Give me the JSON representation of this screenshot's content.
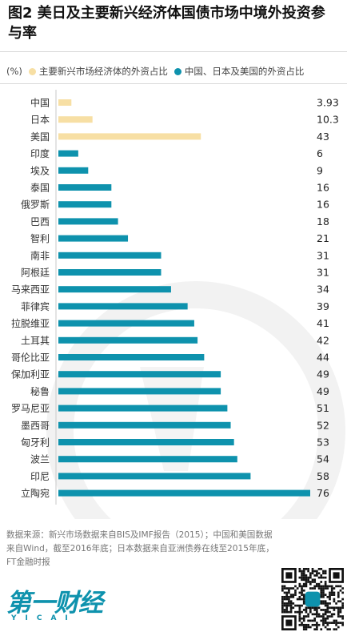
{
  "title": "图2 美日及主要新兴经济体国债市场中境外投资参与率",
  "chart_data": {
    "type": "bar",
    "orientation": "horizontal",
    "unit": "(%)",
    "categories": [
      "中国",
      "日本",
      "美国",
      "印度",
      "埃及",
      "泰国",
      "俄罗斯",
      "巴西",
      "智利",
      "南非",
      "阿根廷",
      "马来西亚",
      "菲律宾",
      "拉脱维亚",
      "土耳其",
      "哥伦比亚",
      "保加利亚",
      "秘鲁",
      "罗马尼亚",
      "墨西哥",
      "匈牙利",
      "波兰",
      "印尼",
      "立陶宛"
    ],
    "values": [
      3.93,
      10.3,
      43,
      6,
      9,
      16,
      16,
      18,
      21,
      31,
      31,
      34,
      39,
      41,
      42,
      44,
      49,
      49,
      51,
      52,
      53,
      54,
      58,
      76
    ],
    "value_labels": [
      "3.93",
      "10.3",
      "43",
      "6",
      "9",
      "16",
      "16",
      "18",
      "21",
      "31",
      "31",
      "34",
      "39",
      "41",
      "42",
      "44",
      "49",
      "49",
      "51",
      "52",
      "53",
      "54",
      "58",
      "76"
    ],
    "groups": [
      0,
      0,
      0,
      1,
      1,
      1,
      1,
      1,
      1,
      1,
      1,
      1,
      1,
      1,
      1,
      1,
      1,
      1,
      1,
      1,
      1,
      1,
      1,
      1
    ],
    "series": [
      {
        "name": "主要新兴市场经济体的外资占比",
        "color": "#f7dfa4"
      },
      {
        "name": "中国、日本及美国的外资占比",
        "color": "#0e92ad"
      }
    ],
    "xlim": [
      0,
      76
    ],
    "grid": false,
    "legend_position": "top"
  },
  "source": "数据来源：新兴市场数据来自BIS及IMF报告（2015）；中国和美国数据来自Wind，截至2016年底；日本数据来自亚洲债券在线至2015年底，FT金融时报",
  "logo": {
    "cn": "第一财经",
    "en": "YICAI"
  },
  "colors": {
    "accent": "#0e92ad",
    "emerging": "#f7dfa4",
    "watermark": "#f1f1f1"
  }
}
